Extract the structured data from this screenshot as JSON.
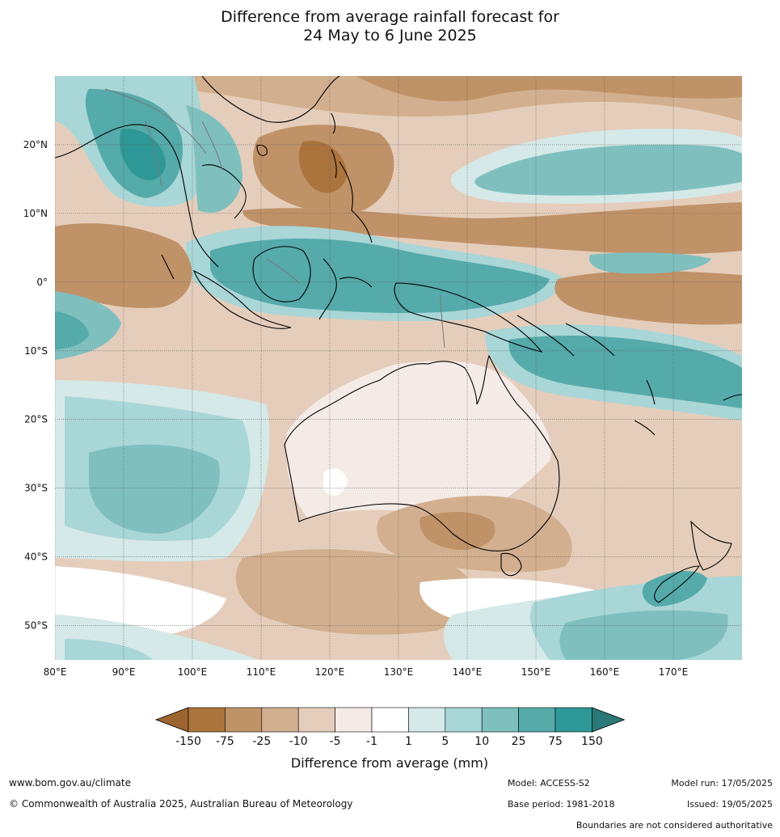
{
  "title": {
    "line1": "Difference from average rainfall forecast for",
    "line2": "24 May to 6 June 2025"
  },
  "map": {
    "lon_labels": [
      "80°E",
      "90°E",
      "100°E",
      "110°E",
      "120°E",
      "130°E",
      "140°E",
      "150°E",
      "160°E",
      "170°E"
    ],
    "lat_labels": [
      "20°N",
      "10°N",
      "0°",
      "10°S",
      "20°S",
      "30°S",
      "40°S",
      "50°S"
    ],
    "lon_values": [
      80,
      90,
      100,
      110,
      120,
      130,
      140,
      150,
      160,
      170
    ],
    "lat_values": [
      20,
      10,
      0,
      -10,
      -20,
      -30,
      -40,
      -50
    ],
    "lon_range": [
      80,
      180
    ],
    "lat_range": [
      -55,
      30
    ],
    "grid": true
  },
  "colorbar": {
    "title": "Difference from average (mm)",
    "tick_labels": [
      "-150",
      "-75",
      "-25",
      "-10",
      "-5",
      "-1",
      "1",
      "5",
      "10",
      "25",
      "75",
      "150"
    ],
    "colors": {
      "below_min": "#9c6530",
      "bins": [
        "#ab743d",
        "#c09268",
        "#d2b08f",
        "#e4cebb",
        "#f4ebe6",
        "#ffffff",
        "#d5e9e8",
        "#a9d6d6",
        "#7fc0bf",
        "#55aaaa",
        "#2e9896"
      ],
      "above_max": "#2b7977"
    }
  },
  "footer": {
    "website": "www.bom.gov.au/climate",
    "copyright": "© Commonwealth of Australia 2025, Australian Bureau of Meteorology",
    "model": "Model: ACCESS-S2",
    "base_period": "Base period: 1981-2018",
    "model_run": "Model run: 17/05/2025",
    "issued": "Issued: 19/05/2025",
    "disclaimer": "Boundaries are not considered authoritative"
  }
}
